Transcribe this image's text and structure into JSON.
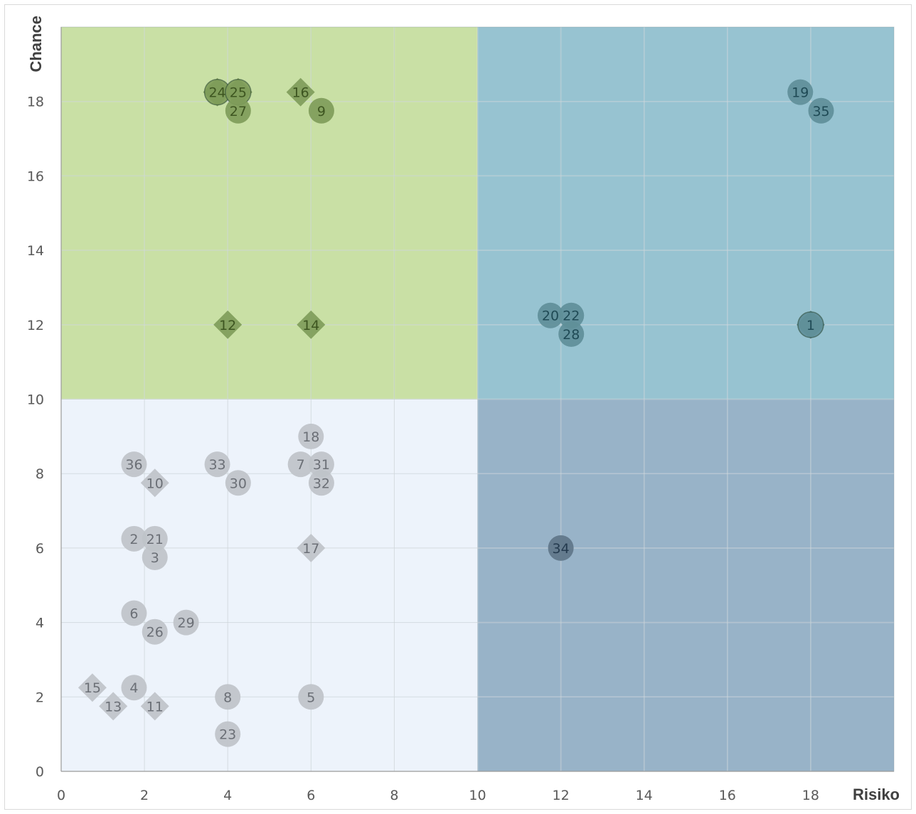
{
  "chart_data": {
    "type": "scatter",
    "title": "",
    "xlabel": "Risiko",
    "ylabel": "Chance",
    "xlim": [
      0,
      20
    ],
    "ylim": [
      0,
      20
    ],
    "x_ticks": [
      0,
      2,
      4,
      6,
      8,
      10,
      12,
      14,
      16,
      18
    ],
    "y_ticks": [
      0,
      2,
      4,
      6,
      8,
      10,
      12,
      14,
      16,
      18
    ],
    "grid": true,
    "legend": "none",
    "quadrants": [
      {
        "x": [
          0,
          10
        ],
        "y": [
          10,
          20
        ],
        "color": "#c9e0a5"
      },
      {
        "x": [
          10,
          20
        ],
        "y": [
          10,
          20
        ],
        "color": "#97c3d1"
      },
      {
        "x": [
          0,
          10
        ],
        "y": [
          0,
          10
        ],
        "color": "#edf3fb"
      },
      {
        "x": [
          10,
          20
        ],
        "y": [
          0,
          10
        ],
        "color": "#98b3c8"
      }
    ],
    "marker_colors": {
      "top_left": "#7f9c5a",
      "top_right": "#5f8f99",
      "bottom_left": "#bfc3c9",
      "bottom_right": "#5f7689"
    },
    "points": [
      {
        "label": "1",
        "x": 18,
        "y": 12,
        "marker": "circle-diamond"
      },
      {
        "label": "2",
        "x": 1.75,
        "y": 6.25,
        "marker": "circle"
      },
      {
        "label": "3",
        "x": 2.25,
        "y": 5.75,
        "marker": "circle"
      },
      {
        "label": "4",
        "x": 1.75,
        "y": 2.25,
        "marker": "circle"
      },
      {
        "label": "5",
        "x": 6,
        "y": 2,
        "marker": "circle"
      },
      {
        "label": "6",
        "x": 1.75,
        "y": 4.25,
        "marker": "circle"
      },
      {
        "label": "7",
        "x": 5.75,
        "y": 8.25,
        "marker": "circle"
      },
      {
        "label": "8",
        "x": 4,
        "y": 2,
        "marker": "circle"
      },
      {
        "label": "9",
        "x": 6.25,
        "y": 17.75,
        "marker": "circle"
      },
      {
        "label": "10",
        "x": 2.25,
        "y": 7.75,
        "marker": "diamond"
      },
      {
        "label": "11",
        "x": 2.25,
        "y": 1.75,
        "marker": "diamond"
      },
      {
        "label": "12",
        "x": 4,
        "y": 12,
        "marker": "diamond"
      },
      {
        "label": "13",
        "x": 1.25,
        "y": 1.75,
        "marker": "diamond"
      },
      {
        "label": "14",
        "x": 6,
        "y": 12,
        "marker": "diamond"
      },
      {
        "label": "15",
        "x": 0.75,
        "y": 2.25,
        "marker": "diamond"
      },
      {
        "label": "16",
        "x": 5.75,
        "y": 18.25,
        "marker": "diamond"
      },
      {
        "label": "17",
        "x": 6,
        "y": 6,
        "marker": "diamond"
      },
      {
        "label": "18",
        "x": 6,
        "y": 9,
        "marker": "circle"
      },
      {
        "label": "19",
        "x": 17.75,
        "y": 18.25,
        "marker": "circle"
      },
      {
        "label": "20",
        "x": 11.75,
        "y": 12.25,
        "marker": "circle"
      },
      {
        "label": "21",
        "x": 2.25,
        "y": 6.25,
        "marker": "circle"
      },
      {
        "label": "22",
        "x": 12.25,
        "y": 12.25,
        "marker": "circle"
      },
      {
        "label": "23",
        "x": 4,
        "y": 1,
        "marker": "circle"
      },
      {
        "label": "24",
        "x": 3.75,
        "y": 18.25,
        "marker": "circle-diamond"
      },
      {
        "label": "25",
        "x": 4.25,
        "y": 18.25,
        "marker": "circle-diamond"
      },
      {
        "label": "26",
        "x": 2.25,
        "y": 3.75,
        "marker": "circle"
      },
      {
        "label": "27",
        "x": 4.25,
        "y": 17.75,
        "marker": "circle"
      },
      {
        "label": "28",
        "x": 12.25,
        "y": 11.75,
        "marker": "circle"
      },
      {
        "label": "29",
        "x": 3,
        "y": 4,
        "marker": "circle"
      },
      {
        "label": "30",
        "x": 4.25,
        "y": 7.75,
        "marker": "circle"
      },
      {
        "label": "31",
        "x": 6.25,
        "y": 8.25,
        "marker": "circle"
      },
      {
        "label": "32",
        "x": 6.25,
        "y": 7.75,
        "marker": "circle"
      },
      {
        "label": "33",
        "x": 3.75,
        "y": 8.25,
        "marker": "circle"
      },
      {
        "label": "34",
        "x": 12,
        "y": 6,
        "marker": "circle"
      },
      {
        "label": "35",
        "x": 18.25,
        "y": 17.75,
        "marker": "circle"
      },
      {
        "label": "36",
        "x": 1.75,
        "y": 8.25,
        "marker": "circle"
      }
    ]
  }
}
